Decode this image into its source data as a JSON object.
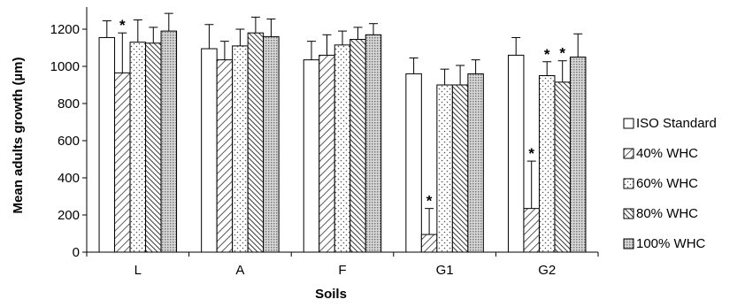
{
  "chart_data": {
    "type": "bar",
    "title": "",
    "xlabel": "Soils",
    "ylabel": "Mean adults growth (µm)",
    "ylim": [
      0,
      1300
    ],
    "yticks": [
      0,
      200,
      400,
      600,
      800,
      1000,
      1200
    ],
    "grid": false,
    "legend_position": "right",
    "categories": [
      "L",
      "A",
      "F",
      "G1",
      "G2"
    ],
    "significance_marker": "*",
    "series": [
      {
        "name": "ISO Standard",
        "pattern": "plain",
        "values": [
          1155,
          1095,
          1035,
          960,
          1060
        ],
        "errors": [
          90,
          130,
          100,
          85,
          95
        ],
        "significant": [
          false,
          false,
          false,
          false,
          false
        ]
      },
      {
        "name": "40% WHC",
        "pattern": "diagonal",
        "values": [
          965,
          1035,
          1060,
          95,
          235
        ],
        "errors": [
          215,
          100,
          110,
          140,
          255
        ],
        "significant": [
          true,
          false,
          false,
          true,
          true
        ]
      },
      {
        "name": "60% WHC",
        "pattern": "dots",
        "values": [
          1130,
          1110,
          1115,
          900,
          950
        ],
        "errors": [
          120,
          90,
          75,
          85,
          75
        ],
        "significant": [
          false,
          false,
          false,
          false,
          true
        ]
      },
      {
        "name": "80% WHC",
        "pattern": "dense-diagonal",
        "values": [
          1125,
          1180,
          1145,
          900,
          915
        ],
        "errors": [
          85,
          85,
          65,
          105,
          115
        ],
        "significant": [
          false,
          false,
          false,
          false,
          true
        ]
      },
      {
        "name": "100% WHC",
        "pattern": "fine-dots",
        "values": [
          1190,
          1160,
          1170,
          960,
          1050
        ],
        "errors": [
          95,
          95,
          60,
          75,
          125
        ],
        "significant": [
          false,
          false,
          false,
          false,
          false
        ]
      }
    ],
    "colors": {
      "stroke": "#000000",
      "fill": "#ffffff"
    }
  }
}
